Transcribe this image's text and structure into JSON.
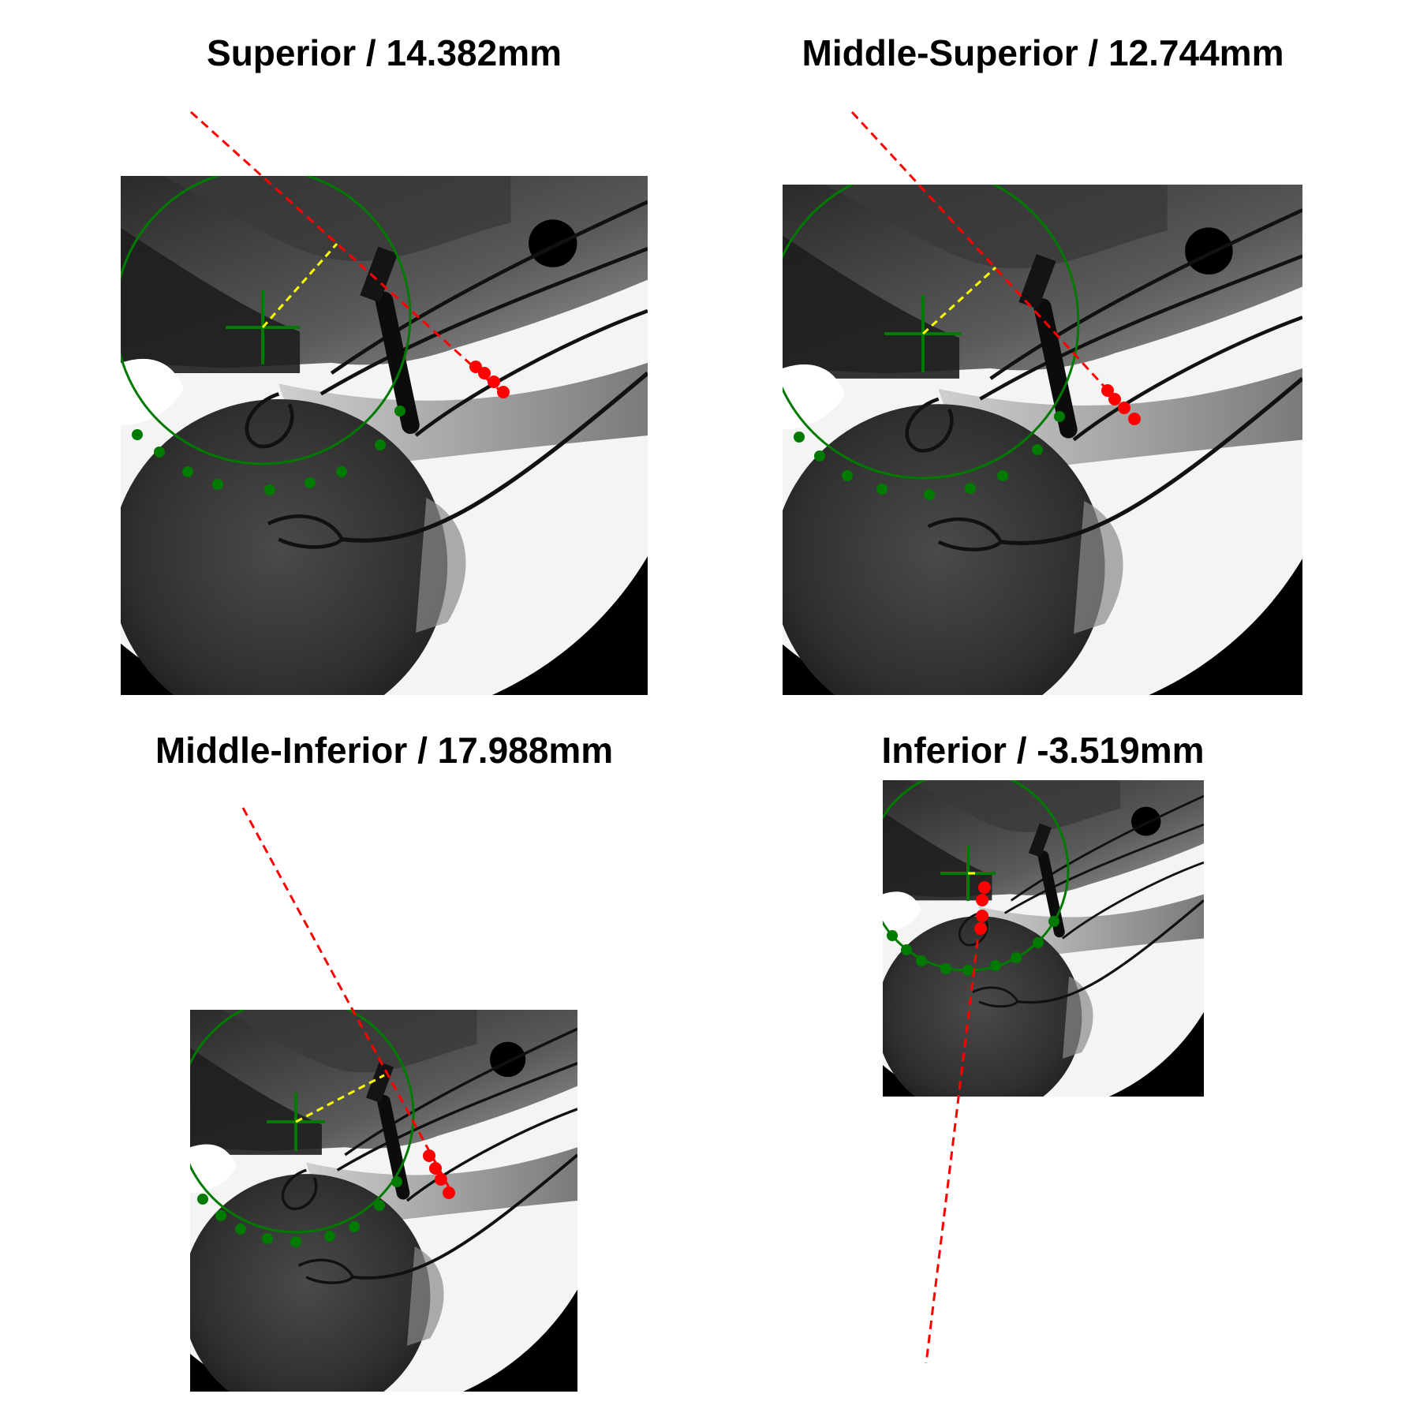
{
  "colors": {
    "background": "#ffffff",
    "xray_frame": "#000000",
    "fit_circle": "#007a00",
    "center_marker": "#007a00",
    "contour_points": "#007a00",
    "tangent_line": "#ff0000",
    "tangent_points": "#ff0000",
    "distance_line": "#ffff00"
  },
  "panels": [
    {
      "id": "superior",
      "title": "Superior / 14.382mm",
      "view": "Superior",
      "distance_mm": 14.382
    },
    {
      "id": "middle-superior",
      "title": "Middle-Superior / 12.744mm",
      "view": "Middle-Superior",
      "distance_mm": 12.744
    },
    {
      "id": "middle-inferior",
      "title": "Middle-Inferior / 17.988mm",
      "view": "Middle-Inferior",
      "distance_mm": 17.988
    },
    {
      "id": "inferior",
      "title": "Inferior / -3.519mm",
      "view": "Inferior",
      "distance_mm": -3.519
    }
  ]
}
